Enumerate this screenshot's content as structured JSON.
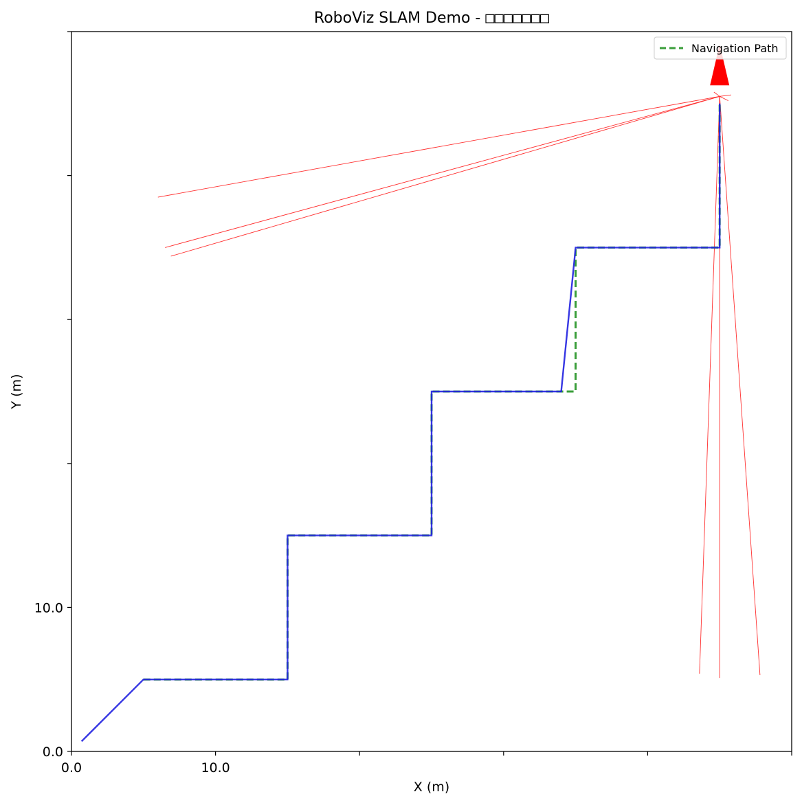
{
  "chart_data": {
    "type": "line",
    "title": "RoboViz SLAM Demo - ",
    "title_placeholder_glyphs": "□□□□□□□",
    "xlabel": "X (m)",
    "ylabel": "Y (m)",
    "xlim": [
      0,
      50
    ],
    "ylim": [
      0,
      50
    ],
    "x_ticks": [
      {
        "value": 0,
        "label": "0.0"
      },
      {
        "value": 10,
        "label": "10.0"
      },
      {
        "value": 20,
        "label": ""
      },
      {
        "value": 30,
        "label": ""
      },
      {
        "value": 40,
        "label": ""
      },
      {
        "value": 50,
        "label": ""
      }
    ],
    "y_ticks": [
      {
        "value": 0,
        "label": "0.0"
      },
      {
        "value": 10,
        "label": "10.0"
      },
      {
        "value": 20,
        "label": ""
      },
      {
        "value": 30,
        "label": ""
      },
      {
        "value": 40,
        "label": ""
      },
      {
        "value": 50,
        "label": ""
      }
    ],
    "grid": false,
    "legend_position": "top-right",
    "legend": [
      {
        "name": "Navigation Path",
        "style": "dashed",
        "color": "#3a9e3a"
      }
    ],
    "series": [
      {
        "name": "Navigation Path",
        "color": "#3a9e3a",
        "style": "dashed",
        "x": [
          5,
          15,
          15,
          25,
          25,
          35,
          35,
          45,
          45
        ],
        "y": [
          5,
          5,
          15,
          15,
          25,
          25,
          35,
          35,
          45
        ]
      },
      {
        "color": "#2020e0",
        "style": "solid",
        "x": [
          0.7,
          5,
          15,
          15,
          25,
          25,
          34,
          35,
          45,
          45
        ],
        "y": [
          0.7,
          5,
          5,
          15,
          15,
          25,
          25,
          35,
          35,
          45
        ]
      }
    ],
    "lidar_rays": {
      "color": "#ff3030",
      "origin": [
        45,
        45.5
      ],
      "endpoints": [
        [
          6,
          38.5
        ],
        [
          6.5,
          35
        ],
        [
          6.9,
          34.4
        ],
        [
          43.6,
          5.4
        ],
        [
          45,
          5.1
        ],
        [
          47.8,
          5.3
        ]
      ],
      "short_rays": [
        [
          44.3,
          45.3
        ],
        [
          45.8,
          45.6
        ],
        [
          44.6,
          45.8
        ],
        [
          45.6,
          45.2
        ]
      ]
    },
    "robot_marker": {
      "shape": "triangle-up",
      "color": "#ff0000",
      "x": 45,
      "y": 47.7,
      "heading": "up"
    }
  }
}
